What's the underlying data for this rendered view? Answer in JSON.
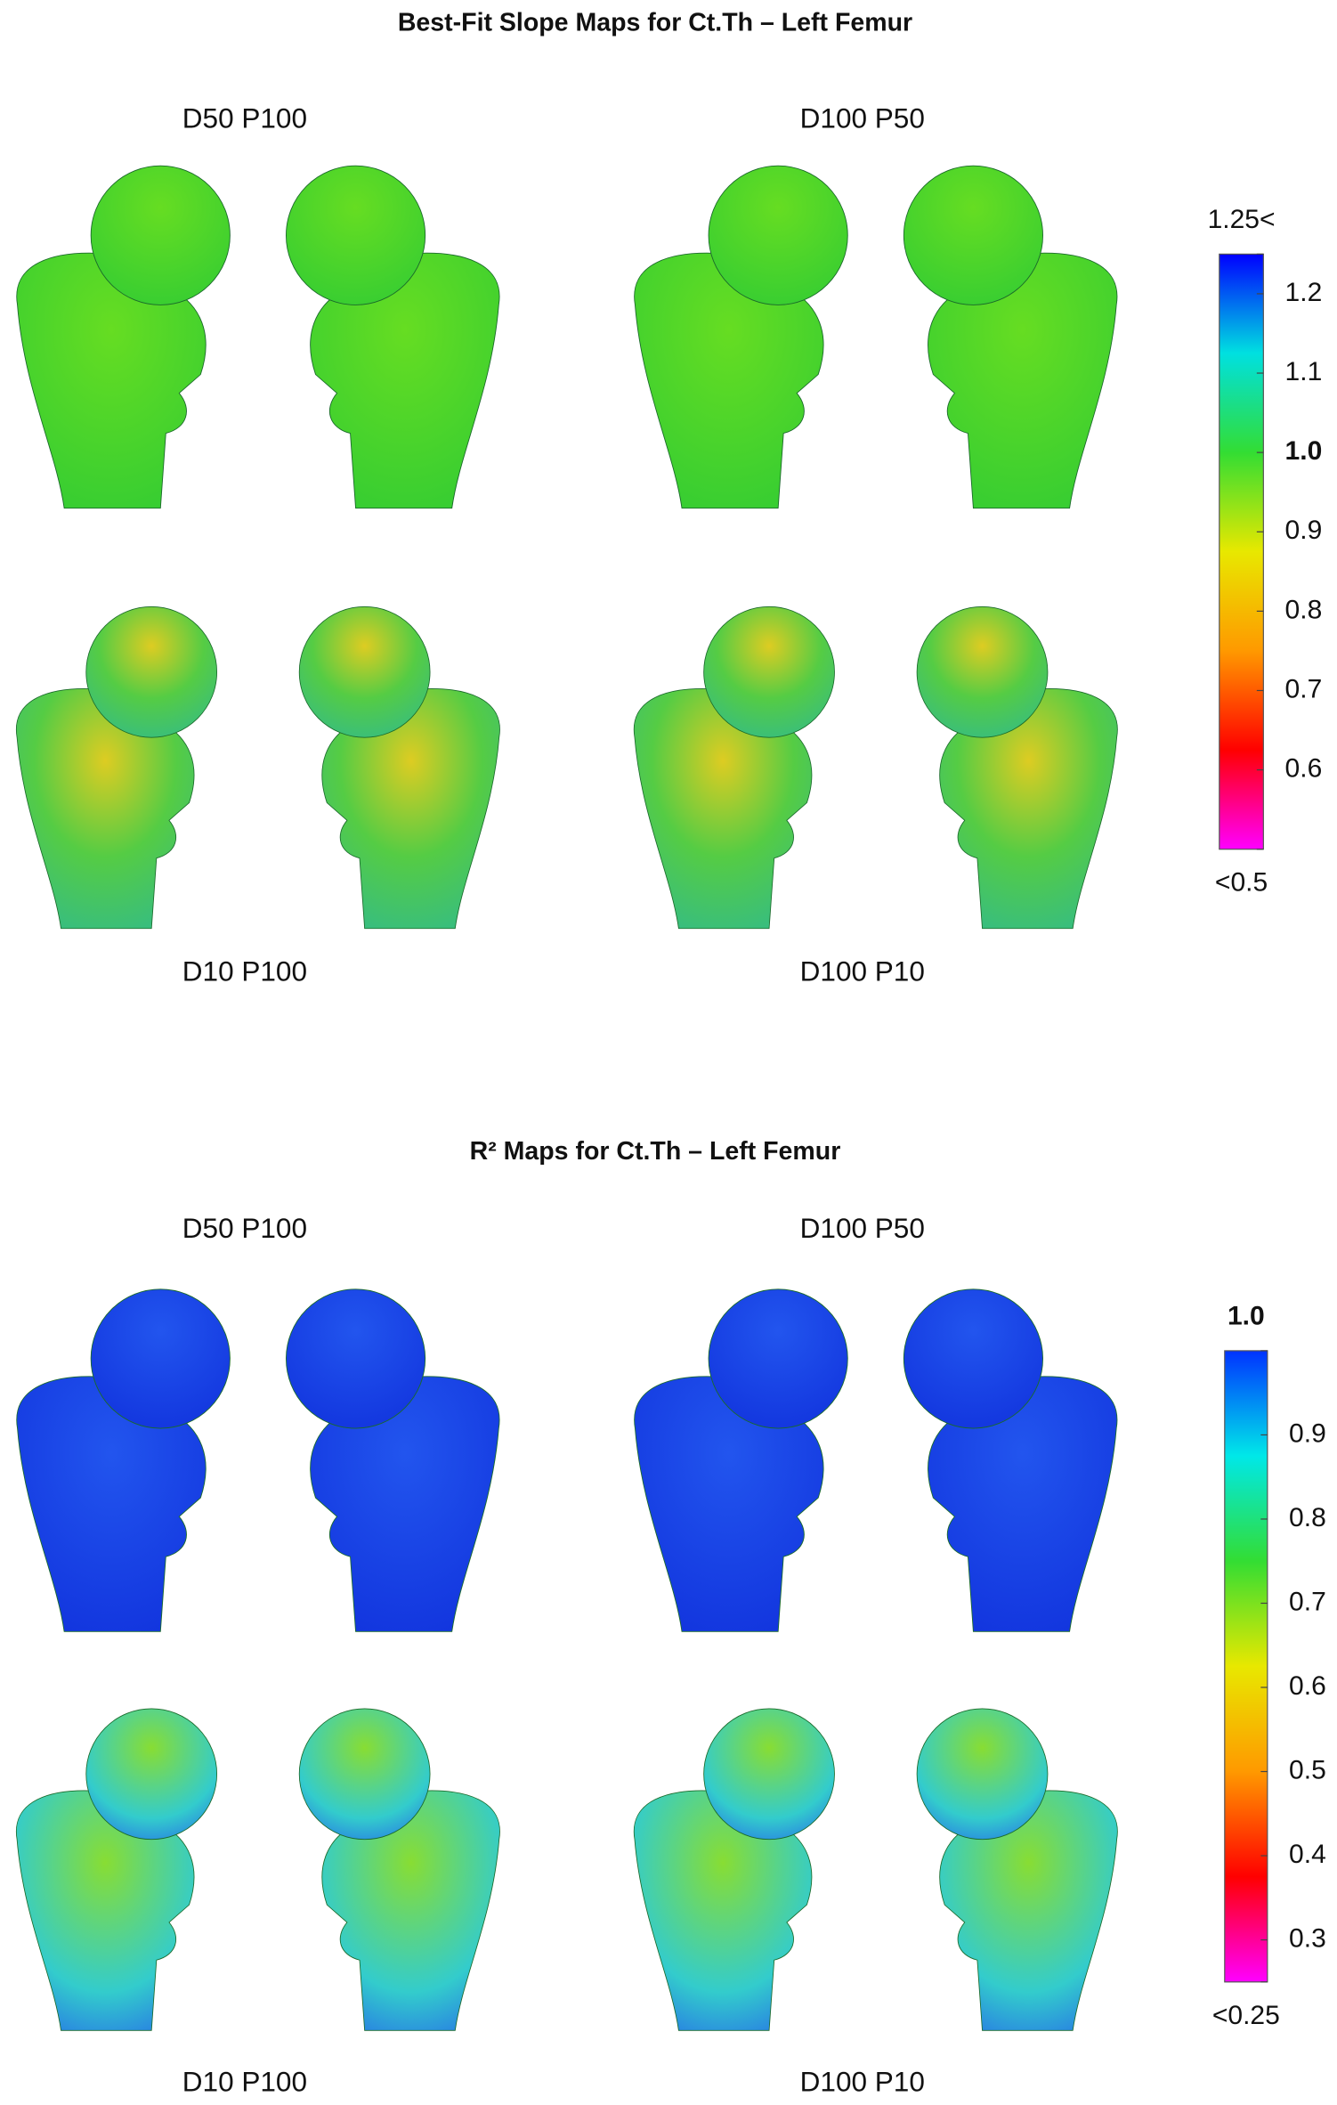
{
  "figures": [
    {
      "title": "Best-Fit Slope Maps for Ct.Th – Left Femur",
      "panels": [
        "D50 P100",
        "D100 P50",
        "D10 P100",
        "D100 P10"
      ],
      "colorbar": {
        "lim": [
          0.5,
          1.25
        ],
        "colormap": [
          "#ff00ff",
          "#ff0000",
          "#ff9900",
          "#e8e800",
          "#33dd33",
          "#00e0e0",
          "#0000ff"
        ],
        "ends": [
          {
            "value": 0.5,
            "label": "<0.5"
          },
          {
            "value": 1.25,
            "label": "1.25<"
          }
        ],
        "ticks": [
          1.2,
          1.1,
          {
            "value": 1,
            "label": "1.0",
            "bold": true
          },
          0.9,
          0.8,
          0.7,
          0.6
        ]
      }
    },
    {
      "title": "R² Maps for Ct.Th – Left Femur",
      "panels": [
        "D50 P100",
        "D100 P50",
        "D10 P100",
        "D100 P10"
      ],
      "colorbar": {
        "lim": [
          0.25,
          1
        ],
        "colormap": [
          "#ff00ff",
          "#ff0000",
          "#ff9900",
          "#e8e800",
          "#33dd33",
          "#00e8e8",
          "#0033ff"
        ],
        "ends": [
          {
            "value": 0.25,
            "label": "<0.25"
          },
          {
            "value": 1,
            "label": "1.0",
            "bold": true
          }
        ],
        "ticks": [
          0.9,
          0.8,
          0.7,
          0.6,
          0.5,
          0.4,
          0.3
        ]
      }
    }
  ]
}
